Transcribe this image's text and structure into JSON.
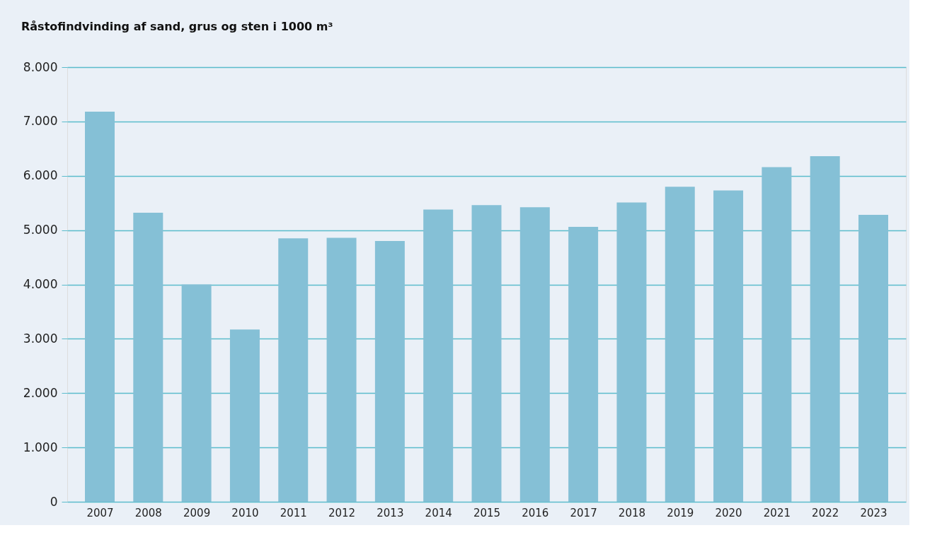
{
  "chart_data": {
    "type": "bar",
    "title": "Råstofindvinding af sand, grus og sten i 1000 m³",
    "categories": [
      "2007",
      "2008",
      "2009",
      "2010",
      "2011",
      "2012",
      "2013",
      "2014",
      "2015",
      "2016",
      "2017",
      "2018",
      "2019",
      "2020",
      "2021",
      "2022",
      "2023"
    ],
    "values": [
      7180,
      5320,
      4000,
      3170,
      4850,
      4860,
      4800,
      5380,
      5460,
      5420,
      5060,
      5510,
      5800,
      5730,
      6160,
      6360,
      5280
    ],
    "color": "#85c0d6",
    "ylim": [
      0,
      8000
    ],
    "yticks": [
      {
        "value": 0,
        "label": "0"
      },
      {
        "value": 1000,
        "label": "1.000"
      },
      {
        "value": 2000,
        "label": "2.000"
      },
      {
        "value": 3000,
        "label": "3.000"
      },
      {
        "value": 4000,
        "label": "4.000"
      },
      {
        "value": 5000,
        "label": "5.000"
      },
      {
        "value": 6000,
        "label": "6.000"
      },
      {
        "value": 7000,
        "label": "7.000"
      },
      {
        "value": 8000,
        "label": "8.000"
      }
    ],
    "grid": "y"
  }
}
